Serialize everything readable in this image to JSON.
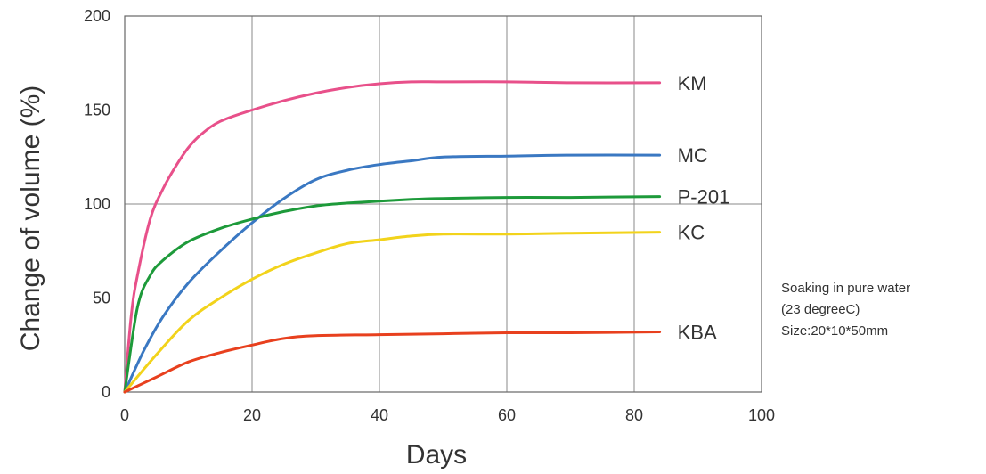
{
  "chart_data": {
    "type": "line",
    "xlabel": "Days",
    "ylabel": "Change of volume (%)",
    "xlim": [
      0,
      100
    ],
    "ylim": [
      0,
      200
    ],
    "x_ticks": [
      "0",
      "20",
      "40",
      "60",
      "80",
      "100"
    ],
    "y_ticks": [
      "0",
      "50",
      "100",
      "150",
      "200"
    ],
    "grid": true,
    "legend": "inline labels at line ends",
    "series": [
      {
        "name": "KM",
        "color": "#e8508a",
        "x": [
          0,
          1,
          2,
          4,
          6,
          8,
          10,
          12,
          15,
          20,
          25,
          30,
          35,
          40,
          45,
          50,
          60,
          70,
          84
        ],
        "y": [
          0,
          40,
          62,
          92,
          108,
          120,
          130,
          137,
          144,
          150,
          155,
          159,
          162,
          164,
          165,
          165,
          165,
          164.5,
          164.5
        ]
      },
      {
        "name": "MC",
        "color": "#3a78c2",
        "x": [
          0,
          3,
          6,
          10,
          15,
          20,
          25,
          30,
          35,
          40,
          45,
          50,
          60,
          70,
          84
        ],
        "y": [
          0,
          22,
          40,
          58,
          75,
          90,
          103,
          113,
          118,
          121,
          123,
          125,
          125.5,
          126,
          126
        ]
      },
      {
        "name": "P-201",
        "color": "#1d9a3a",
        "x": [
          0,
          2,
          4,
          6,
          10,
          15,
          20,
          25,
          30,
          35,
          40,
          45,
          50,
          60,
          70,
          84
        ],
        "y": [
          0,
          45,
          62,
          70,
          80,
          87,
          92,
          96,
          99,
          100.5,
          101.5,
          102.5,
          103,
          103.5,
          103.5,
          104
        ]
      },
      {
        "name": "KC",
        "color": "#f2d31b",
        "x": [
          0,
          5,
          10,
          15,
          20,
          25,
          30,
          35,
          40,
          45,
          50,
          60,
          70,
          84
        ],
        "y": [
          0,
          20,
          38,
          50,
          60,
          68,
          74,
          79,
          81,
          83,
          84,
          84,
          84.5,
          85
        ]
      },
      {
        "name": "KBA",
        "color": "#e8401e",
        "x": [
          0,
          5,
          10,
          15,
          20,
          25,
          30,
          40,
          50,
          60,
          70,
          84
        ],
        "y": [
          0,
          8,
          16,
          21,
          25,
          28.5,
          30,
          30.5,
          31,
          31.5,
          31.5,
          32
        ]
      }
    ]
  },
  "note": {
    "line1": "Soaking in pure water",
    "line2": "(23 degreeC)",
    "line3": "Size:20*10*50mm"
  }
}
